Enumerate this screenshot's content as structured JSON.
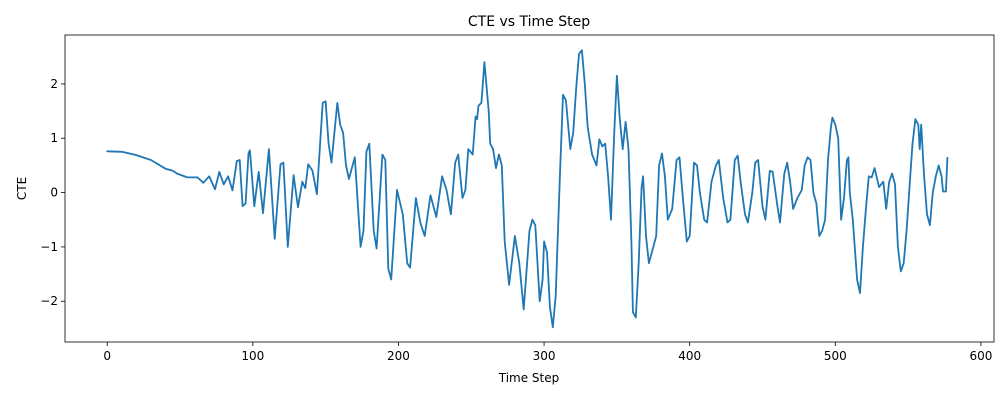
{
  "chart_data": {
    "type": "line",
    "title": "CTE vs Time Step",
    "xlabel": "Time Step",
    "ylabel": "CTE",
    "xlim": [
      -29,
      609
    ],
    "ylim": [
      -2.75,
      2.9
    ],
    "grid": false,
    "legend": "none",
    "xticks": [
      0,
      100,
      200,
      300,
      400,
      500,
      600
    ],
    "yticks": [
      -2,
      -1,
      0,
      1,
      2
    ],
    "series": [
      {
        "color": "#1f77b4",
        "points": [
          [
            0,
            0.76
          ],
          [
            10,
            0.75
          ],
          [
            20,
            0.69
          ],
          [
            30,
            0.6
          ],
          [
            40,
            0.44
          ],
          [
            45,
            0.4
          ],
          [
            48,
            0.35
          ],
          [
            55,
            0.28
          ],
          [
            62,
            0.28
          ],
          [
            66,
            0.18
          ],
          [
            70,
            0.3
          ],
          [
            74,
            0.06
          ],
          [
            77,
            0.38
          ],
          [
            80,
            0.15
          ],
          [
            83,
            0.3
          ],
          [
            86,
            0.04
          ],
          [
            89,
            0.58
          ],
          [
            91,
            0.6
          ],
          [
            93,
            -0.25
          ],
          [
            95,
            -0.2
          ],
          [
            97,
            0.72
          ],
          [
            98,
            0.78
          ],
          [
            101,
            -0.25
          ],
          [
            104,
            0.38
          ],
          [
            107,
            -0.38
          ],
          [
            111,
            0.8
          ],
          [
            115,
            -0.85
          ],
          [
            119,
            0.52
          ],
          [
            121,
            0.55
          ],
          [
            124,
            -1.0
          ],
          [
            128,
            0.32
          ],
          [
            131,
            -0.27
          ],
          [
            134,
            0.2
          ],
          [
            136,
            0.08
          ],
          [
            138,
            0.52
          ],
          [
            141,
            0.4
          ],
          [
            144,
            -0.03
          ],
          [
            148,
            1.65
          ],
          [
            150,
            1.68
          ],
          [
            152,
            0.9
          ],
          [
            154,
            0.55
          ],
          [
            158,
            1.65
          ],
          [
            160,
            1.25
          ],
          [
            162,
            1.1
          ],
          [
            164,
            0.5
          ],
          [
            166,
            0.25
          ],
          [
            170,
            0.65
          ],
          [
            174,
            -1.0
          ],
          [
            176,
            -0.7
          ],
          [
            178,
            0.75
          ],
          [
            180,
            0.9
          ],
          [
            183,
            -0.7
          ],
          [
            185,
            -1.03
          ],
          [
            189,
            0.7
          ],
          [
            191,
            0.6
          ],
          [
            193,
            -1.4
          ],
          [
            195,
            -1.6
          ],
          [
            199,
            0.05
          ],
          [
            203,
            -0.4
          ],
          [
            206,
            -1.3
          ],
          [
            208,
            -1.38
          ],
          [
            212,
            -0.1
          ],
          [
            215,
            -0.55
          ],
          [
            218,
            -0.8
          ],
          [
            222,
            -0.05
          ],
          [
            226,
            -0.45
          ],
          [
            230,
            0.3
          ],
          [
            233,
            0.05
          ],
          [
            236,
            -0.4
          ],
          [
            239,
            0.55
          ],
          [
            241,
            0.7
          ],
          [
            244,
            -0.1
          ],
          [
            246,
            0.05
          ],
          [
            248,
            0.8
          ],
          [
            251,
            0.7
          ],
          [
            253,
            1.4
          ],
          [
            254,
            1.35
          ],
          [
            255,
            1.6
          ],
          [
            257,
            1.65
          ],
          [
            259,
            2.4
          ],
          [
            262,
            1.5
          ],
          [
            263,
            0.9
          ],
          [
            265,
            0.8
          ],
          [
            267,
            0.45
          ],
          [
            269,
            0.7
          ],
          [
            271,
            0.5
          ],
          [
            273,
            -0.9
          ],
          [
            276,
            -1.7
          ],
          [
            280,
            -0.8
          ],
          [
            283,
            -1.3
          ],
          [
            286,
            -2.15
          ],
          [
            290,
            -0.7
          ],
          [
            292,
            -0.5
          ],
          [
            294,
            -0.6
          ],
          [
            297,
            -2.0
          ],
          [
            299,
            -1.6
          ],
          [
            300,
            -0.9
          ],
          [
            302,
            -1.1
          ],
          [
            304,
            -2.1
          ],
          [
            306,
            -2.48
          ],
          [
            308,
            -1.9
          ],
          [
            311,
            0.4
          ],
          [
            313,
            1.8
          ],
          [
            315,
            1.7
          ],
          [
            318,
            0.8
          ],
          [
            320,
            1.1
          ],
          [
            322,
            1.9
          ],
          [
            324,
            2.55
          ],
          [
            326,
            2.62
          ],
          [
            328,
            2.0
          ],
          [
            330,
            1.2
          ],
          [
            333,
            0.7
          ],
          [
            336,
            0.5
          ],
          [
            338,
            0.98
          ],
          [
            340,
            0.85
          ],
          [
            342,
            0.9
          ],
          [
            344,
            0.3
          ],
          [
            346,
            -0.5
          ],
          [
            348,
            1.0
          ],
          [
            350,
            2.15
          ],
          [
            352,
            1.35
          ],
          [
            354,
            0.8
          ],
          [
            356,
            1.3
          ],
          [
            358,
            0.8
          ],
          [
            360,
            -0.9
          ],
          [
            361,
            -2.2
          ],
          [
            363,
            -2.3
          ],
          [
            365,
            -1.3
          ],
          [
            367,
            0.1
          ],
          [
            368,
            0.3
          ],
          [
            370,
            -0.8
          ],
          [
            372,
            -1.3
          ],
          [
            375,
            -1.0
          ],
          [
            377,
            -0.8
          ],
          [
            379,
            0.5
          ],
          [
            381,
            0.72
          ],
          [
            383,
            0.3
          ],
          [
            385,
            -0.5
          ],
          [
            388,
            -0.3
          ],
          [
            391,
            0.6
          ],
          [
            393,
            0.65
          ],
          [
            395,
            0.0
          ],
          [
            398,
            -0.9
          ],
          [
            400,
            -0.8
          ],
          [
            403,
            0.55
          ],
          [
            405,
            0.5
          ],
          [
            407,
            0.0
          ],
          [
            410,
            -0.5
          ],
          [
            412,
            -0.55
          ],
          [
            415,
            0.2
          ],
          [
            418,
            0.5
          ],
          [
            420,
            0.6
          ],
          [
            423,
            -0.1
          ],
          [
            426,
            -0.55
          ],
          [
            428,
            -0.5
          ],
          [
            431,
            0.6
          ],
          [
            433,
            0.68
          ],
          [
            435,
            0.2
          ],
          [
            438,
            -0.4
          ],
          [
            440,
            -0.55
          ],
          [
            443,
            0.0
          ],
          [
            445,
            0.55
          ],
          [
            447,
            0.6
          ],
          [
            450,
            -0.25
          ],
          [
            452,
            -0.5
          ],
          [
            455,
            0.4
          ],
          [
            457,
            0.38
          ],
          [
            460,
            -0.2
          ],
          [
            462,
            -0.55
          ],
          [
            465,
            0.35
          ],
          [
            467,
            0.55
          ],
          [
            469,
            0.2
          ],
          [
            471,
            -0.3
          ],
          [
            474,
            -0.1
          ],
          [
            477,
            0.05
          ],
          [
            479,
            0.5
          ],
          [
            481,
            0.65
          ],
          [
            483,
            0.6
          ],
          [
            485,
            0.0
          ],
          [
            487,
            -0.2
          ],
          [
            489,
            -0.8
          ],
          [
            491,
            -0.7
          ],
          [
            493,
            -0.5
          ],
          [
            495,
            0.6
          ],
          [
            497,
            1.2
          ],
          [
            498,
            1.38
          ],
          [
            500,
            1.25
          ],
          [
            502,
            1.0
          ],
          [
            504,
            -0.5
          ],
          [
            506,
            -0.1
          ],
          [
            508,
            0.6
          ],
          [
            509,
            0.65
          ],
          [
            510,
            0.0
          ],
          [
            512,
            -0.5
          ],
          [
            515,
            -1.6
          ],
          [
            517,
            -1.85
          ],
          [
            519,
            -1.0
          ],
          [
            521,
            -0.3
          ],
          [
            523,
            0.3
          ],
          [
            525,
            0.28
          ],
          [
            527,
            0.45
          ],
          [
            530,
            0.1
          ],
          [
            533,
            0.2
          ],
          [
            535,
            -0.3
          ],
          [
            537,
            0.2
          ],
          [
            539,
            0.35
          ],
          [
            541,
            0.15
          ],
          [
            543,
            -1.0
          ],
          [
            545,
            -1.45
          ],
          [
            547,
            -1.3
          ],
          [
            549,
            -0.7
          ],
          [
            551,
            0.1
          ],
          [
            553,
            0.9
          ],
          [
            555,
            1.35
          ],
          [
            557,
            1.25
          ],
          [
            558,
            0.8
          ],
          [
            559,
            1.25
          ],
          [
            561,
            0.3
          ],
          [
            563,
            -0.4
          ],
          [
            565,
            -0.6
          ],
          [
            567,
            0.0
          ],
          [
            569,
            0.3
          ],
          [
            571,
            0.5
          ],
          [
            573,
            0.3
          ],
          [
            574,
            0.02
          ],
          [
            576,
            0.02
          ],
          [
            577,
            0.64
          ]
        ]
      }
    ]
  }
}
